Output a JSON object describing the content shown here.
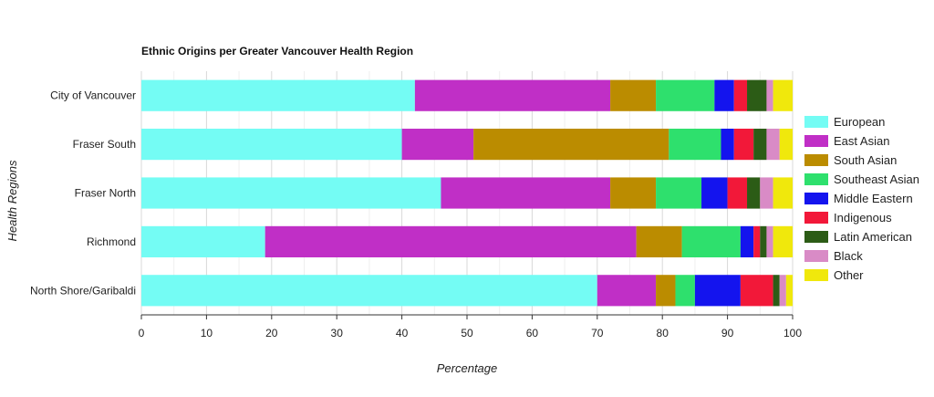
{
  "chart_data": {
    "type": "bar",
    "orientation": "horizontal",
    "stacked": true,
    "title": "Ethnic Origins per Greater Vancouver Health Region",
    "xlabel": "Percentage",
    "ylabel": "Health Regions",
    "xlim": [
      0,
      100
    ],
    "xticks": [
      "0",
      "10",
      "20",
      "30",
      "40",
      "50",
      "60",
      "70",
      "80",
      "90",
      "100"
    ],
    "grid": true,
    "legend_position": "right",
    "categories": [
      "City of Vancouver",
      "Fraser South",
      "Fraser North",
      "Richmond",
      "North Shore/Garibaldi"
    ],
    "series": [
      {
        "name": "European",
        "color": "#74fcf4",
        "values": [
          42,
          40,
          46,
          19,
          70
        ]
      },
      {
        "name": "East Asian",
        "color": "#c02fc6",
        "values": [
          30,
          11,
          26,
          57,
          9
        ]
      },
      {
        "name": "South Asian",
        "color": "#bb8c00",
        "values": [
          7,
          30,
          7,
          7,
          3
        ]
      },
      {
        "name": "Southeast Asian",
        "color": "#2ee06d",
        "values": [
          9,
          8,
          7,
          9,
          3
        ]
      },
      {
        "name": "Middle Eastern",
        "color": "#1414ee",
        "values": [
          3,
          2,
          4,
          2,
          7
        ]
      },
      {
        "name": "Indigenous",
        "color": "#f21839",
        "values": [
          2,
          3,
          3,
          1,
          5
        ]
      },
      {
        "name": "Latin American",
        "color": "#2c5c16",
        "values": [
          3,
          2,
          2,
          1,
          1
        ]
      },
      {
        "name": "Black",
        "color": "#d98bc6",
        "values": [
          1,
          2,
          2,
          1,
          1
        ]
      },
      {
        "name": "Other",
        "color": "#f0e80c",
        "values": [
          3,
          2,
          3,
          3,
          1
        ]
      }
    ]
  }
}
